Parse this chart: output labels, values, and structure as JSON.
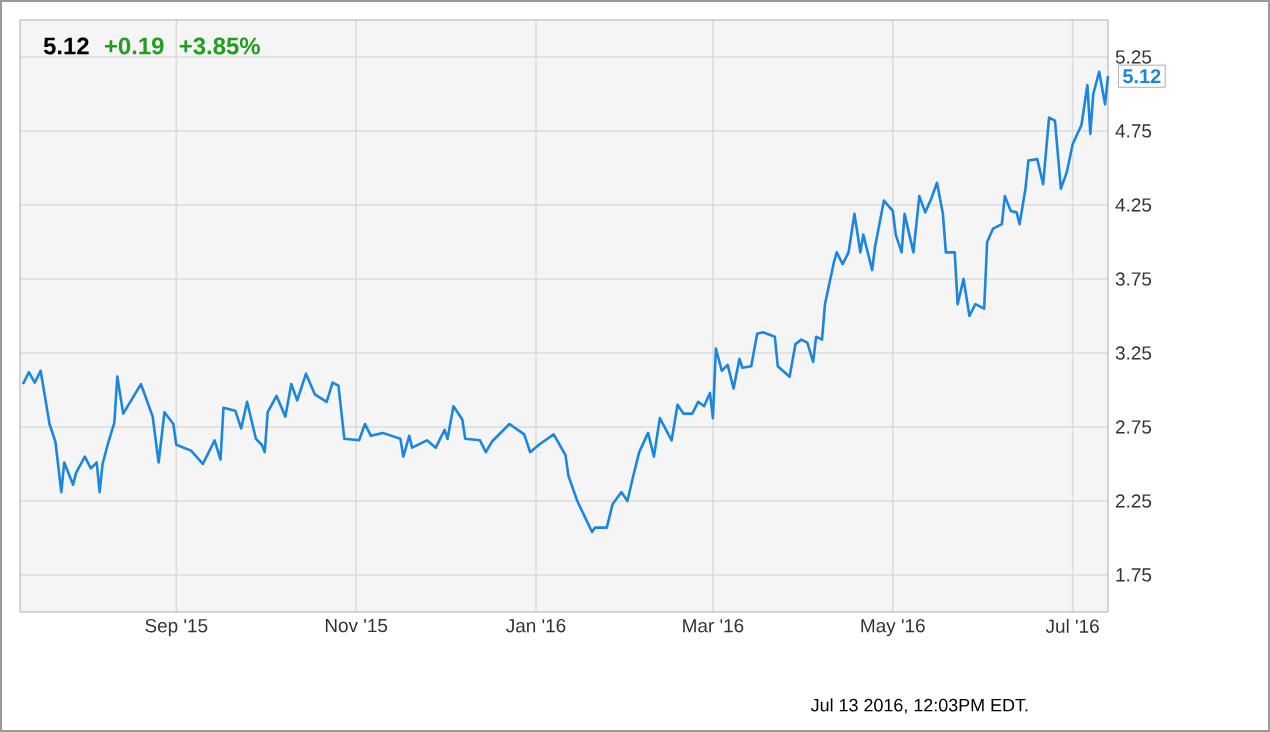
{
  "chart_data": {
    "type": "line",
    "grid": true,
    "xlim": [
      "2015-07-10",
      "2016-07-13"
    ],
    "ylim": [
      1.5,
      5.5
    ],
    "xticks": [
      {
        "value": "2015-09-01",
        "label": "Sep '15"
      },
      {
        "value": "2015-11-01",
        "label": "Nov '15"
      },
      {
        "value": "2016-01-01",
        "label": "Jan '16"
      },
      {
        "value": "2016-03-01",
        "label": "Mar '16"
      },
      {
        "value": "2016-05-01",
        "label": "May '16"
      },
      {
        "value": "2016-07-01",
        "label": "Jul '16"
      }
    ],
    "yticks": [
      1.75,
      2.25,
      2.75,
      3.25,
      3.75,
      4.25,
      4.75,
      5.25
    ],
    "annotations": [
      "5.12",
      "+0.19",
      "+3.85%",
      {
        "text": "5.12",
        "x": "2016-07-13",
        "y": 5.12
      },
      "Jul 13 2016, 12:03PM EDT."
    ],
    "series": [
      {
        "color": "#1a86e0",
        "x": [
          "2015-07-11",
          "2015-07-13",
          "2015-07-15",
          "2015-07-17",
          "2015-07-20",
          "2015-07-22",
          "2015-07-24",
          "2015-07-25",
          "2015-07-28",
          "2015-07-29",
          "2015-08-01",
          "2015-08-03",
          "2015-08-05",
          "2015-08-06",
          "2015-08-07",
          "2015-08-09",
          "2015-08-11",
          "2015-08-12",
          "2015-08-14",
          "2015-08-20",
          "2015-08-24",
          "2015-08-26",
          "2015-08-28",
          "2015-08-31",
          "2015-09-01",
          "2015-09-06",
          "2015-09-10",
          "2015-09-14",
          "2015-09-16",
          "2015-09-17",
          "2015-09-21",
          "2015-09-23",
          "2015-09-25",
          "2015-09-28",
          "2015-09-30",
          "2015-10-01",
          "2015-10-02",
          "2015-10-05",
          "2015-10-08",
          "2015-10-10",
          "2015-10-12",
          "2015-10-15",
          "2015-10-18",
          "2015-10-22",
          "2015-10-24",
          "2015-10-26",
          "2015-10-28",
          "2015-11-02",
          "2015-11-04",
          "2015-11-06",
          "2015-11-10",
          "2015-11-16",
          "2015-11-17",
          "2015-11-19",
          "2015-11-20",
          "2015-11-25",
          "2015-11-28",
          "2015-12-01",
          "2015-12-02",
          "2015-12-04",
          "2015-12-07",
          "2015-12-08",
          "2015-12-13",
          "2015-12-15",
          "2015-12-17",
          "2015-12-23",
          "2015-12-28",
          "2015-12-30",
          "2016-01-02",
          "2016-01-07",
          "2016-01-11",
          "2016-01-12",
          "2016-01-15",
          "2016-01-20",
          "2016-01-21",
          "2016-01-25",
          "2016-01-27",
          "2016-01-30",
          "2016-02-01",
          "2016-02-03",
          "2016-02-05",
          "2016-02-08",
          "2016-02-10",
          "2016-02-12",
          "2016-02-16",
          "2016-02-18",
          "2016-02-20",
          "2016-02-23",
          "2016-02-25",
          "2016-02-27",
          "2016-02-29",
          "2016-03-01",
          "2016-03-02",
          "2016-03-04",
          "2016-03-06",
          "2016-03-08",
          "2016-03-10",
          "2016-03-11",
          "2016-03-14",
          "2016-03-16",
          "2016-03-18",
          "2016-03-22",
          "2016-03-23",
          "2016-03-27",
          "2016-03-29",
          "2016-03-31",
          "2016-04-02",
          "2016-04-04",
          "2016-04-05",
          "2016-04-07",
          "2016-04-08",
          "2016-04-11",
          "2016-04-12",
          "2016-04-14",
          "2016-04-16",
          "2016-04-18",
          "2016-04-20",
          "2016-04-21",
          "2016-04-24",
          "2016-04-25",
          "2016-04-28",
          "2016-05-01",
          "2016-05-02",
          "2016-05-04",
          "2016-05-05",
          "2016-05-08",
          "2016-05-10",
          "2016-05-12",
          "2016-05-14",
          "2016-05-16",
          "2016-05-18",
          "2016-05-19",
          "2016-05-22",
          "2016-05-23",
          "2016-05-25",
          "2016-05-27",
          "2016-05-29",
          "2016-06-01",
          "2016-06-02",
          "2016-06-04",
          "2016-06-07",
          "2016-06-08",
          "2016-06-10",
          "2016-06-12",
          "2016-06-13",
          "2016-06-15",
          "2016-06-16",
          "2016-06-19",
          "2016-06-21",
          "2016-06-23",
          "2016-06-25",
          "2016-06-27",
          "2016-06-29",
          "2016-07-01",
          "2016-07-04",
          "2016-07-06",
          "2016-07-07",
          "2016-07-08",
          "2016-07-10",
          "2016-07-12",
          "2016-07-13"
        ],
        "values": [
          3.04,
          3.12,
          3.05,
          3.13,
          2.77,
          2.65,
          2.31,
          2.51,
          2.36,
          2.44,
          2.55,
          2.47,
          2.51,
          2.31,
          2.5,
          2.65,
          2.78,
          3.09,
          2.84,
          3.04,
          2.82,
          2.51,
          2.85,
          2.77,
          2.63,
          2.59,
          2.5,
          2.66,
          2.53,
          2.88,
          2.86,
          2.74,
          2.92,
          2.67,
          2.63,
          2.58,
          2.85,
          2.96,
          2.82,
          3.04,
          2.93,
          3.11,
          2.97,
          2.92,
          3.05,
          3.03,
          2.67,
          2.66,
          2.77,
          2.69,
          2.71,
          2.67,
          2.55,
          2.69,
          2.61,
          2.66,
          2.61,
          2.73,
          2.67,
          2.89,
          2.8,
          2.67,
          2.66,
          2.58,
          2.65,
          2.77,
          2.7,
          2.58,
          2.63,
          2.7,
          2.56,
          2.42,
          2.25,
          2.04,
          2.07,
          2.07,
          2.23,
          2.31,
          2.25,
          2.42,
          2.58,
          2.71,
          2.55,
          2.81,
          2.66,
          2.9,
          2.84,
          2.84,
          2.92,
          2.89,
          2.98,
          2.81,
          3.28,
          3.13,
          3.17,
          3.01,
          3.21,
          3.15,
          3.16,
          3.38,
          3.39,
          3.36,
          3.16,
          3.09,
          3.31,
          3.34,
          3.32,
          3.19,
          3.36,
          3.34,
          3.58,
          3.86,
          3.93,
          3.85,
          3.93,
          4.19,
          3.93,
          4.05,
          3.81,
          3.97,
          4.28,
          4.21,
          4.05,
          3.93,
          4.19,
          3.93,
          4.31,
          4.2,
          4.29,
          4.4,
          4.19,
          3.93,
          3.93,
          3.58,
          3.75,
          3.5,
          3.58,
          3.55,
          4.0,
          4.09,
          4.12,
          4.31,
          4.21,
          4.2,
          4.12,
          4.36,
          4.55,
          4.56,
          4.39,
          4.84,
          4.82,
          4.36,
          4.47,
          4.66,
          4.79,
          5.06,
          4.73,
          5.0,
          5.15,
          4.93,
          5.12
        ]
      }
    ]
  }
}
